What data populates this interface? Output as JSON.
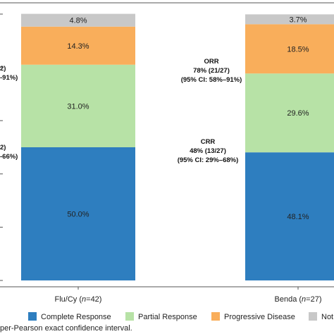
{
  "chart_data": {
    "type": "bar",
    "stacked": true,
    "percent_scale": true,
    "categories": [
      "Flu/Cy (n=42)",
      "Benda (n=27)"
    ],
    "category_parts": [
      {
        "name": "Flu/Cy",
        "n_prefix": " (",
        "n_italic": "n",
        "n_suffix": "=42)"
      },
      {
        "name": "Benda",
        "n_prefix": " (",
        "n_italic": "n",
        "n_suffix": "=27)"
      }
    ],
    "series": [
      {
        "name": "Complete Response",
        "color": "#2E7EBF",
        "values": [
          50.0,
          48.1
        ],
        "labels": [
          "50.0%",
          "48.1%"
        ]
      },
      {
        "name": "Partial Response",
        "color": "#B7E2A6",
        "values": [
          31.0,
          29.6
        ],
        "labels": [
          "31.0%",
          "29.6%"
        ]
      },
      {
        "name": "Progressive Disease",
        "color": "#F9AE5B",
        "values": [
          14.3,
          18.5
        ],
        "labels": [
          "14.3%",
          "18.5%"
        ]
      },
      {
        "name": "Not",
        "color": "#C8C8C8",
        "values": [
          4.8,
          3.7
        ],
        "labels": [
          "4.8%",
          "3.7%"
        ]
      }
    ],
    "annotations": [
      {
        "category": 0,
        "lines": [
          "2)",
          "-91%)"
        ],
        "level": "orr"
      },
      {
        "category": 0,
        "lines": [
          "2)",
          "-66%)"
        ],
        "level": "crr"
      },
      {
        "category": 1,
        "lines": [
          "ORR",
          "78% (21/27)",
          "(95% CI: 58%–91%)"
        ],
        "level": "orr"
      },
      {
        "category": 1,
        "lines": [
          "CRR",
          "48% (13/27)",
          "(95% CI: 29%–68%)"
        ],
        "level": "crr"
      }
    ],
    "ylim": [
      0,
      100
    ],
    "grid": false,
    "legend_position": "bottom",
    "footnote": "per-Pearson exact confidence interval."
  }
}
